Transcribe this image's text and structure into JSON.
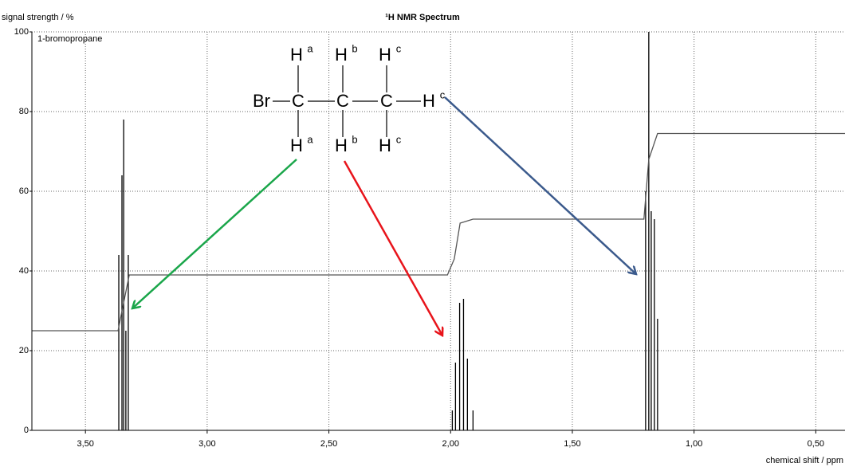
{
  "chart_data": {
    "type": "line",
    "title": "¹H NMR Spectrum",
    "sample": "1-bromopropane",
    "ylabel": "signal strength / %",
    "xlabel": "chemical shift / ppm",
    "xlim": [
      3.72,
      0.38
    ],
    "ylim": [
      0,
      100
    ],
    "xticks": [
      {
        "value": 3.5,
        "label": "3,50"
      },
      {
        "value": 3,
        "label": "3,00"
      },
      {
        "value": 2.5,
        "label": "2,50"
      },
      {
        "value": 2,
        "label": "2,00"
      },
      {
        "value": 1.5,
        "label": "1,50"
      },
      {
        "value": 1,
        "label": "1,00"
      },
      {
        "value": 0.5,
        "label": "0,50"
      }
    ],
    "yticks": [
      0,
      20,
      40,
      60,
      80,
      100
    ],
    "grid": true,
    "series": [
      {
        "style": "stick",
        "color": "#000000",
        "x": [
          3.363,
          3.35,
          3.343,
          3.334,
          3.324,
          1.993,
          1.98,
          1.963,
          1.947,
          1.931,
          1.908,
          1.199,
          1.186,
          1.176,
          1.163,
          1.15
        ],
        "values": [
          44,
          64,
          78,
          25,
          44,
          5,
          17,
          32,
          33,
          18,
          5,
          60,
          100,
          55,
          53,
          28
        ]
      },
      {
        "style": "line",
        "color": "#555555",
        "x": [
          3.72,
          3.366,
          3.353,
          3.32,
          2.013,
          1.985,
          1.961,
          1.908,
          1.206,
          1.186,
          1.15,
          0.38
        ],
        "values": [
          25,
          25,
          29,
          39,
          39,
          43,
          52,
          53,
          53,
          68,
          74.5,
          74.5
        ]
      }
    ],
    "molecule": {
      "substituent": "Br",
      "carbon": "C",
      "hydrogen": "H",
      "labels": [
        "a",
        "b",
        "c"
      ]
    }
  }
}
